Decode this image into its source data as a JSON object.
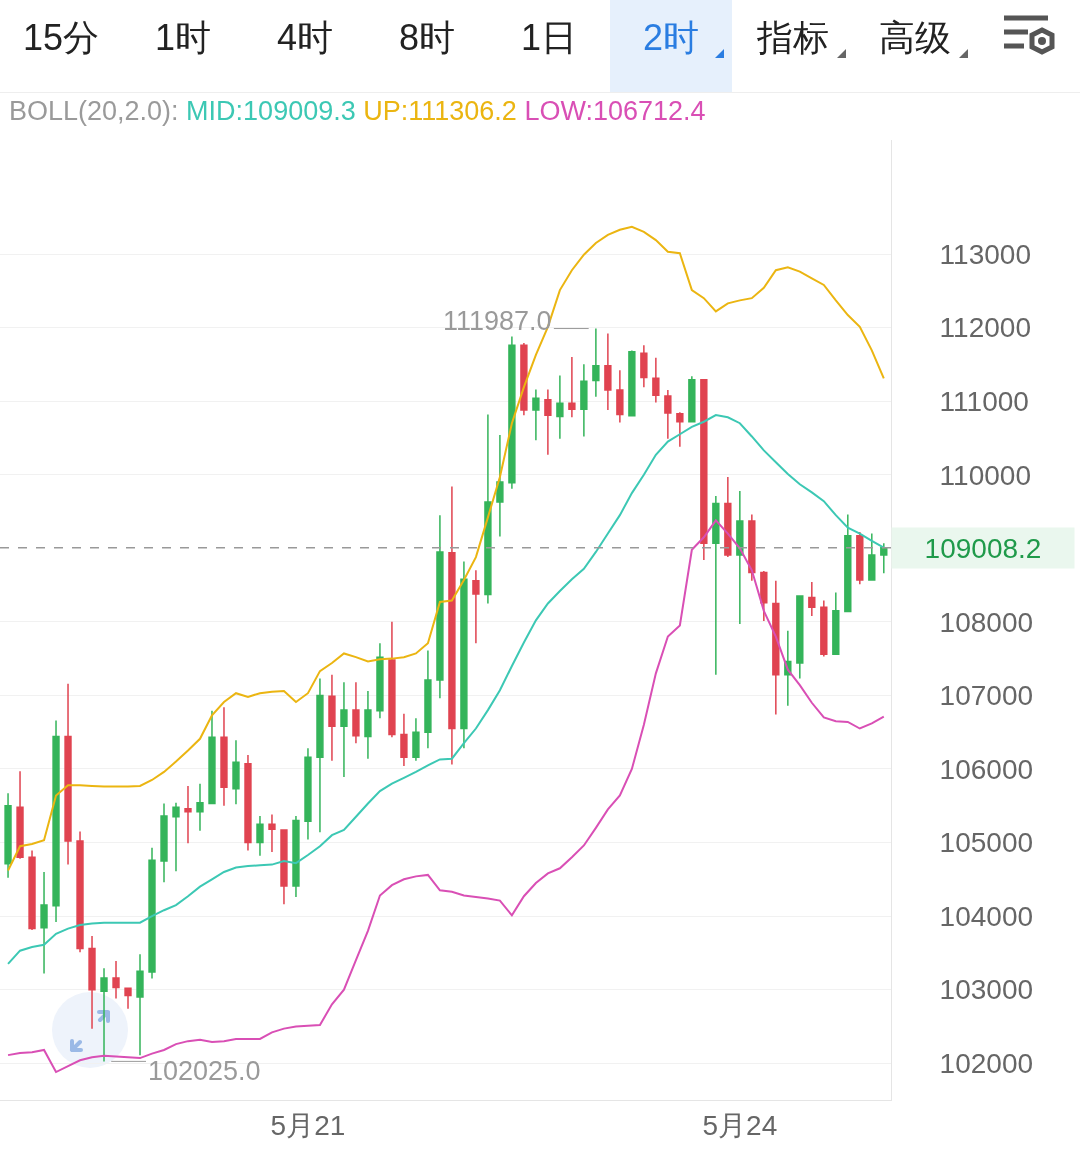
{
  "chart_data": {
    "type": "candlestick",
    "categories": [
      null,
      null,
      null,
      null,
      null,
      null,
      null,
      null,
      null,
      null,
      null,
      null,
      null,
      null,
      null,
      null,
      null,
      null,
      null,
      null,
      null,
      null,
      null,
      null,
      null,
      "5月21",
      null,
      null,
      null,
      null,
      null,
      null,
      null,
      null,
      null,
      null,
      null,
      null,
      null,
      null,
      null,
      null,
      null,
      null,
      null,
      null,
      null,
      null,
      null,
      null,
      null,
      null,
      null,
      null,
      null,
      null,
      null,
      null,
      null,
      null,
      null,
      "5月24",
      null,
      null,
      null,
      null,
      null,
      null,
      null,
      null,
      null,
      null,
      null,
      null
    ],
    "ohlc": [
      [
        104710,
        105670,
        104520,
        105500
      ],
      [
        105480,
        105970,
        104780,
        104800
      ],
      [
        104800,
        104890,
        103810,
        103830
      ],
      [
        103840,
        104600,
        103220,
        104150
      ],
      [
        104140,
        106660,
        103920,
        106440
      ],
      [
        106440,
        107160,
        104700,
        105020
      ],
      [
        105020,
        105150,
        103510,
        103560
      ],
      [
        103560,
        103730,
        102470,
        103000
      ],
      [
        102980,
        103290,
        102025,
        103160
      ],
      [
        103160,
        103390,
        102880,
        103030
      ],
      [
        103020,
        103030,
        102740,
        102920
      ],
      [
        102900,
        103480,
        102110,
        103250
      ],
      [
        103240,
        104930,
        103150,
        104760
      ],
      [
        104750,
        105530,
        104460,
        105360
      ],
      [
        105350,
        105540,
        104610,
        105480
      ],
      [
        105460,
        105770,
        104990,
        105420
      ],
      [
        105420,
        105800,
        105160,
        105540
      ],
      [
        105530,
        106790,
        105530,
        106430
      ],
      [
        106430,
        106840,
        105500,
        105750
      ],
      [
        105730,
        106390,
        105520,
        106090
      ],
      [
        106070,
        106190,
        104890,
        105000
      ],
      [
        105000,
        105360,
        104820,
        105250
      ],
      [
        105250,
        105380,
        104870,
        105180
      ],
      [
        105170,
        105180,
        104160,
        104410
      ],
      [
        104410,
        105360,
        104260,
        105300
      ],
      [
        105290,
        106280,
        105040,
        106160
      ],
      [
        106160,
        107230,
        105140,
        107000
      ],
      [
        106990,
        107280,
        106110,
        106580
      ],
      [
        106580,
        107180,
        105890,
        106800
      ],
      [
        106800,
        107180,
        106350,
        106450
      ],
      [
        106440,
        107060,
        106140,
        106800
      ],
      [
        106790,
        107710,
        106690,
        107520
      ],
      [
        107480,
        108000,
        106430,
        106470
      ],
      [
        106470,
        106750,
        106040,
        106160
      ],
      [
        106160,
        106690,
        106110,
        106500
      ],
      [
        106500,
        107610,
        106280,
        107210
      ],
      [
        107210,
        109450,
        106960,
        108950
      ],
      [
        108940,
        109840,
        106060,
        106550
      ],
      [
        106550,
        108820,
        106280,
        108580
      ],
      [
        108560,
        108700,
        107710,
        108380
      ],
      [
        108370,
        110820,
        108250,
        109630
      ],
      [
        109630,
        110540,
        109160,
        109900
      ],
      [
        109890,
        111880,
        109810,
        111760
      ],
      [
        111760,
        111790,
        110810,
        110880
      ],
      [
        110880,
        111160,
        110470,
        111040
      ],
      [
        111020,
        111160,
        110270,
        110810
      ],
      [
        110790,
        111350,
        110490,
        110970
      ],
      [
        110970,
        111600,
        110780,
        110890
      ],
      [
        110890,
        111500,
        110520,
        111270
      ],
      [
        111280,
        111987,
        111060,
        111480
      ],
      [
        111480,
        111920,
        110880,
        111150
      ],
      [
        111150,
        111420,
        110710,
        110820
      ],
      [
        110800,
        111690,
        110800,
        111670
      ],
      [
        111650,
        111760,
        111190,
        111320
      ],
      [
        111310,
        111590,
        110980,
        111080
      ],
      [
        111070,
        111150,
        110490,
        110840
      ],
      [
        110830,
        110850,
        110380,
        110720
      ],
      [
        110720,
        111340,
        110720,
        111290
      ],
      [
        111290,
        111300,
        108840,
        109070
      ],
      [
        109070,
        109710,
        107280,
        109610
      ],
      [
        109610,
        109970,
        108880,
        108910
      ],
      [
        108910,
        109780,
        107970,
        109370
      ],
      [
        109370,
        109460,
        108560,
        108670
      ],
      [
        108670,
        108690,
        108010,
        108260
      ],
      [
        108250,
        108560,
        106740,
        107280
      ],
      [
        107280,
        107880,
        106860,
        107460
      ],
      [
        107440,
        108350,
        107230,
        108350
      ],
      [
        108330,
        108540,
        108080,
        108200
      ],
      [
        108200,
        108290,
        107530,
        107560
      ],
      [
        107560,
        108400,
        107560,
        108150
      ],
      [
        108140,
        109460,
        108140,
        109170
      ],
      [
        109170,
        109220,
        108510,
        108570
      ],
      [
        108570,
        109200,
        108570,
        108910
      ],
      [
        108910,
        109070,
        108660,
        109008.2
      ]
    ],
    "series": [
      {
        "name": "MID:109009.3",
        "type": "line",
        "color": "#3cc8b4",
        "values": [
          103350,
          103530,
          103580,
          103610,
          103760,
          103830,
          103880,
          103900,
          103910,
          103910,
          103910,
          103910,
          104000,
          104080,
          104150,
          104270,
          104400,
          104500,
          104600,
          104660,
          104680,
          104690,
          104700,
          104750,
          104720,
          104830,
          104950,
          105100,
          105170,
          105350,
          105530,
          105700,
          105800,
          105880,
          105960,
          106050,
          106130,
          106140,
          106350,
          106550,
          106800,
          107070,
          107400,
          107720,
          108020,
          108250,
          108420,
          108580,
          108720,
          108950,
          109200,
          109450,
          109750,
          110000,
          110270,
          110450,
          110550,
          110650,
          110720,
          110810,
          110780,
          110700,
          110520,
          110330,
          110170,
          110010,
          109870,
          109760,
          109640,
          109450,
          109280,
          109200,
          109100,
          109010
        ]
      },
      {
        "name": "UP:111306.2",
        "type": "line",
        "color": "#ebb511",
        "values": [
          104620,
          104950,
          104980,
          105030,
          105640,
          105780,
          105780,
          105770,
          105760,
          105760,
          105760,
          105770,
          105850,
          105960,
          106100,
          106250,
          106410,
          106730,
          106910,
          107030,
          106980,
          107030,
          107050,
          107060,
          106910,
          107030,
          107330,
          107440,
          107570,
          107520,
          107460,
          107490,
          107500,
          107520,
          107570,
          107710,
          108270,
          108290,
          108570,
          108880,
          109420,
          109970,
          110700,
          111190,
          111630,
          112010,
          112510,
          112780,
          112990,
          113150,
          113260,
          113330,
          113370,
          113300,
          113190,
          113030,
          113010,
          112510,
          112400,
          112220,
          112330,
          112370,
          112400,
          112540,
          112780,
          112820,
          112760,
          112670,
          112580,
          112370,
          112170,
          112010,
          111690,
          111310
        ]
      },
      {
        "name": "LOW:106712.4",
        "type": "line",
        "color": "#d94fb5",
        "values": [
          102110,
          102140,
          102150,
          102180,
          101880,
          101960,
          102040,
          102080,
          102100,
          102090,
          102080,
          102070,
          102130,
          102180,
          102260,
          102300,
          102320,
          102290,
          102300,
          102330,
          102330,
          102330,
          102420,
          102470,
          102500,
          102510,
          102520,
          102800,
          103000,
          103400,
          103800,
          104280,
          104420,
          104500,
          104540,
          104560,
          104350,
          104330,
          104280,
          104260,
          104240,
          104210,
          104010,
          104270,
          104450,
          104580,
          104650,
          104800,
          104960,
          105200,
          105450,
          105640,
          106000,
          106600,
          107300,
          107800,
          107950,
          108980,
          109150,
          109380,
          109200,
          109000,
          108700,
          108150,
          107800,
          107350,
          107140,
          106900,
          106700,
          106650,
          106640,
          106550,
          106620,
          106710
        ]
      }
    ],
    "legend_title": "BOLL(20,2.0):",
    "legend": "top",
    "ylim": [
      101500,
      114550
    ],
    "yticks": [
      102000,
      103000,
      104000,
      105000,
      106000,
      107000,
      108000,
      110000,
      111000,
      112000,
      113000
    ],
    "grid": "y",
    "ref_lines": [
      {
        "axis": "y",
        "value": 109008.2,
        "label": "109008.2",
        "color": "#999999",
        "line_style": "dashed"
      }
    ],
    "annotations": [
      "15分",
      "1时",
      "4时",
      "8时",
      "1日",
      "2时",
      "指标",
      "高级",
      "111987.0",
      "102025.0"
    ]
  }
}
